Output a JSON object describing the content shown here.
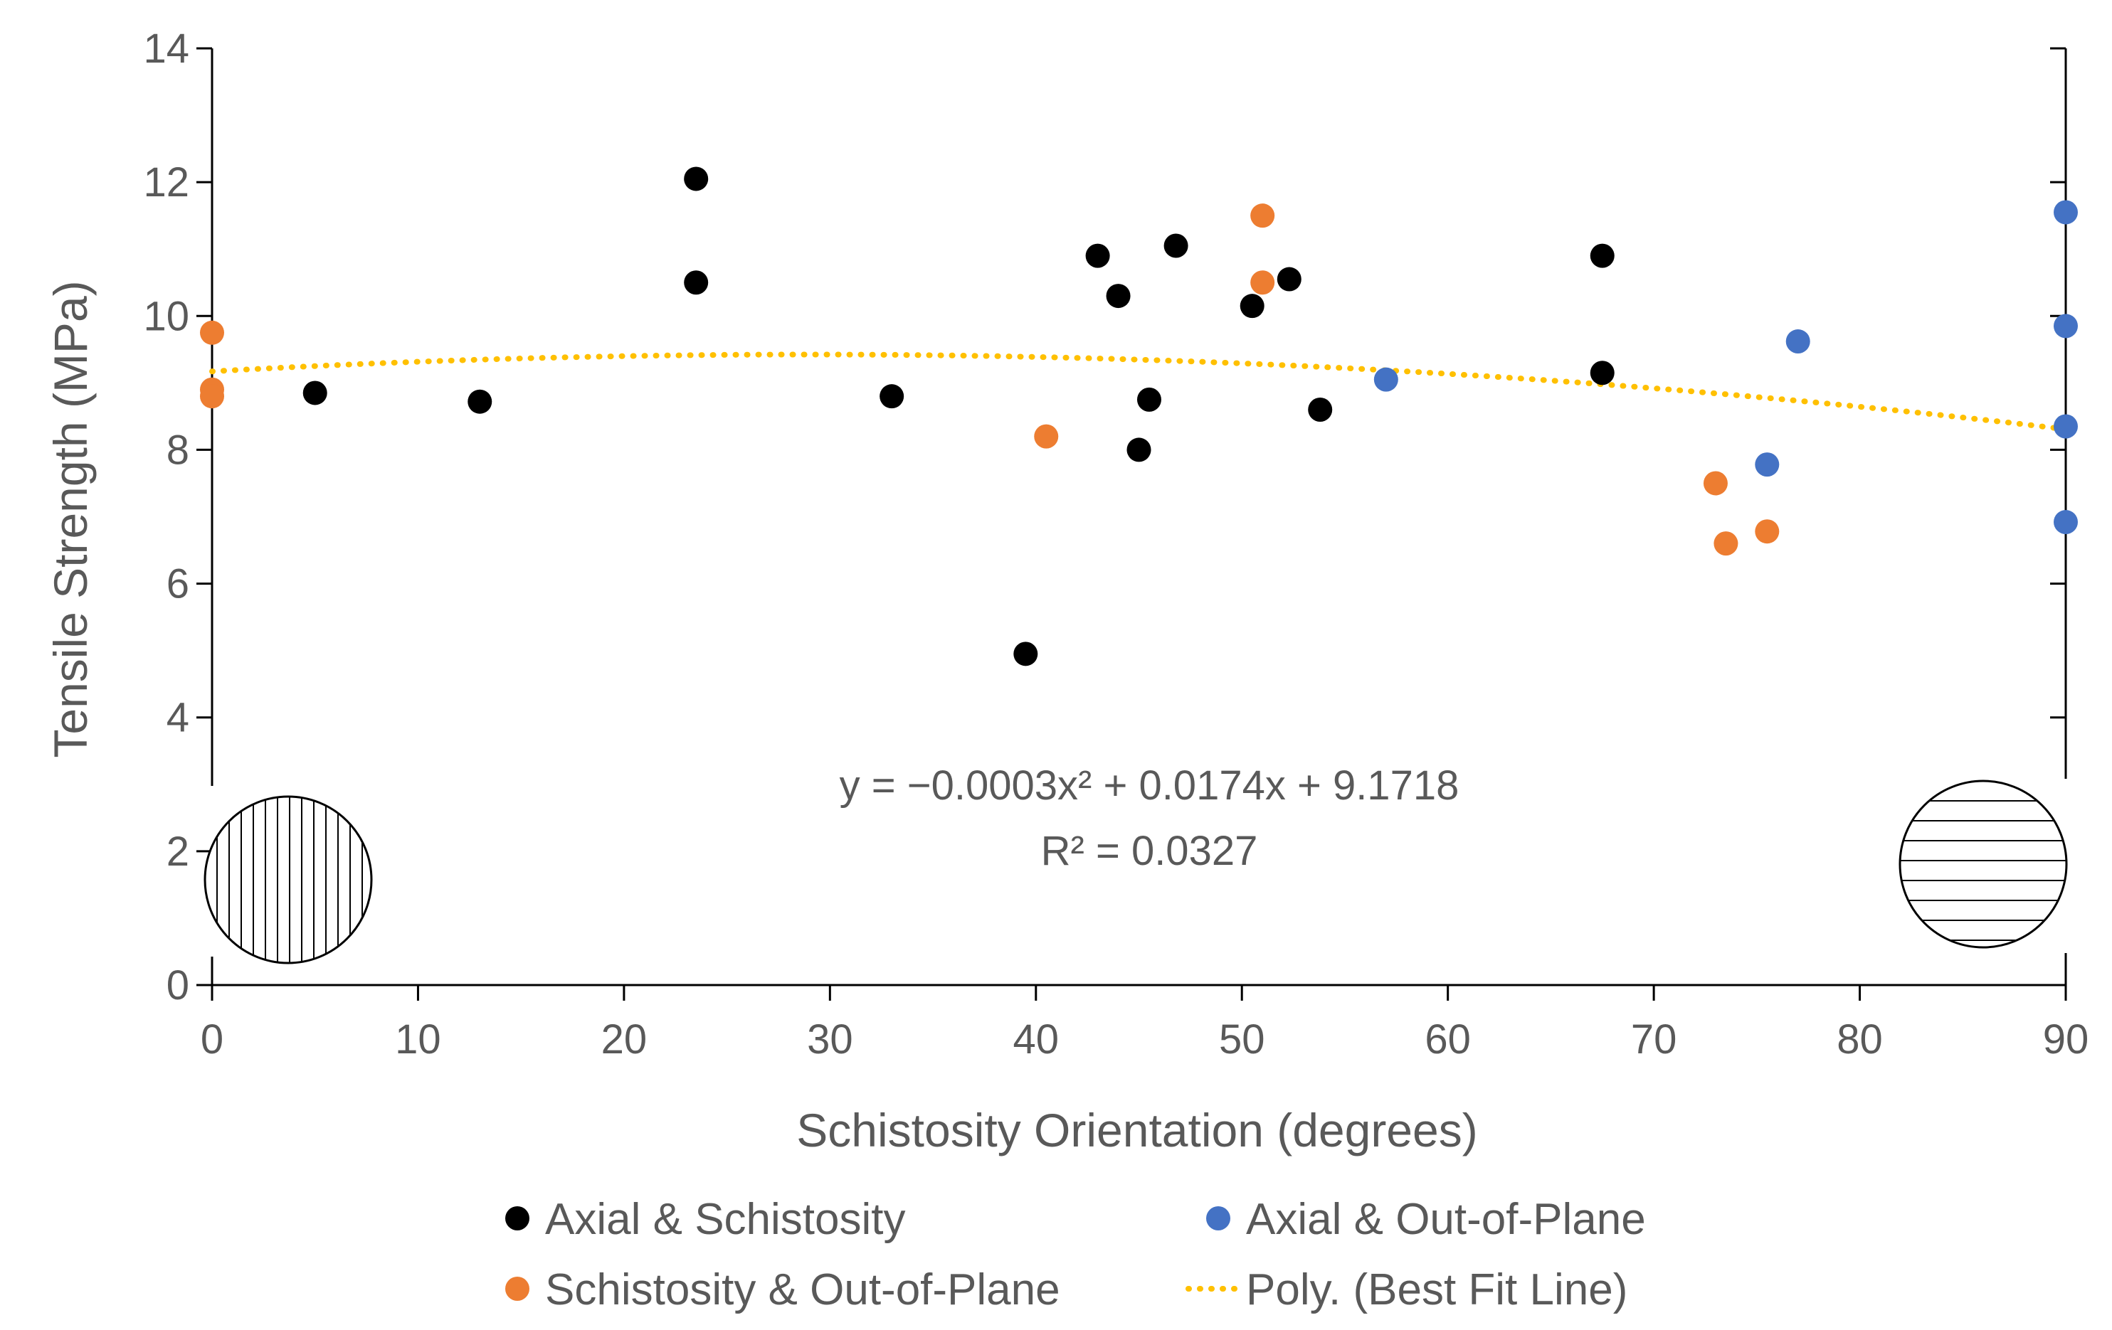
{
  "chart_data": {
    "type": "scatter",
    "xlabel": "Schistosity Orientation (degrees)",
    "ylabel": "Tensile Strength (MPa)",
    "xlim": [
      0,
      90
    ],
    "ylim": [
      0,
      14
    ],
    "x_ticks": [
      0,
      10,
      20,
      30,
      40,
      50,
      60,
      70,
      80,
      90
    ],
    "y_ticks": [
      0,
      2,
      4,
      6,
      8,
      10,
      12,
      14
    ],
    "grid": false,
    "series": [
      {
        "name": "Axial & Schistosity",
        "color": "#000000",
        "points": [
          [
            5,
            8.85
          ],
          [
            13,
            8.72
          ],
          [
            23.5,
            12.05
          ],
          [
            23.5,
            10.5
          ],
          [
            33,
            8.8
          ],
          [
            39.5,
            4.95
          ],
          [
            43,
            10.9
          ],
          [
            44,
            10.3
          ],
          [
            45,
            8.0
          ],
          [
            45.5,
            8.75
          ],
          [
            46.8,
            11.05
          ],
          [
            50.5,
            10.15
          ],
          [
            52.3,
            10.55
          ],
          [
            53.8,
            8.6
          ],
          [
            67.5,
            10.9
          ],
          [
            67.5,
            9.15
          ]
        ]
      },
      {
        "name": "Axial & Out-of-Plane",
        "color": "#4472C4",
        "points": [
          [
            57,
            9.05
          ],
          [
            75.5,
            7.78
          ],
          [
            77,
            9.62
          ],
          [
            90,
            11.55
          ],
          [
            90,
            9.85
          ],
          [
            90,
            8.35
          ],
          [
            90,
            6.92
          ]
        ]
      },
      {
        "name": "Schistosity & Out-of-Plane",
        "color": "#ED7D31",
        "points": [
          [
            0,
            9.75
          ],
          [
            0,
            8.9
          ],
          [
            0,
            8.8
          ],
          [
            40.5,
            8.2
          ],
          [
            51,
            11.5
          ],
          [
            51,
            10.5
          ],
          [
            73,
            7.5
          ],
          [
            73.5,
            6.6
          ],
          [
            75.5,
            6.78
          ]
        ]
      }
    ],
    "trendline": {
      "name": "Poly. (Best Fit Line)",
      "type": "polynomial",
      "coefficients": [
        -0.0003,
        0.0174,
        9.1718
      ],
      "color": "#FFC000",
      "equation": "y = −0.0003x² + 0.0174x + 9.1718",
      "r_squared": "R² = 0.0327"
    },
    "legend": [
      {
        "label": "Axial & Schistosity",
        "marker": "dot",
        "color": "#000000"
      },
      {
        "label": "Axial & Out-of-Plane",
        "marker": "dot",
        "color": "#4472C4"
      },
      {
        "label": "Schistosity & Out-of-Plane",
        "marker": "dot",
        "color": "#ED7D31"
      },
      {
        "label": "Poly. (Best Fit Line)",
        "marker": "dotted-line",
        "color": "#FFC000"
      }
    ],
    "insets": [
      {
        "name": "vertical-schistosity-icon",
        "position": "bottom-left"
      },
      {
        "name": "horizontal-schistosity-icon",
        "position": "bottom-right"
      }
    ]
  }
}
